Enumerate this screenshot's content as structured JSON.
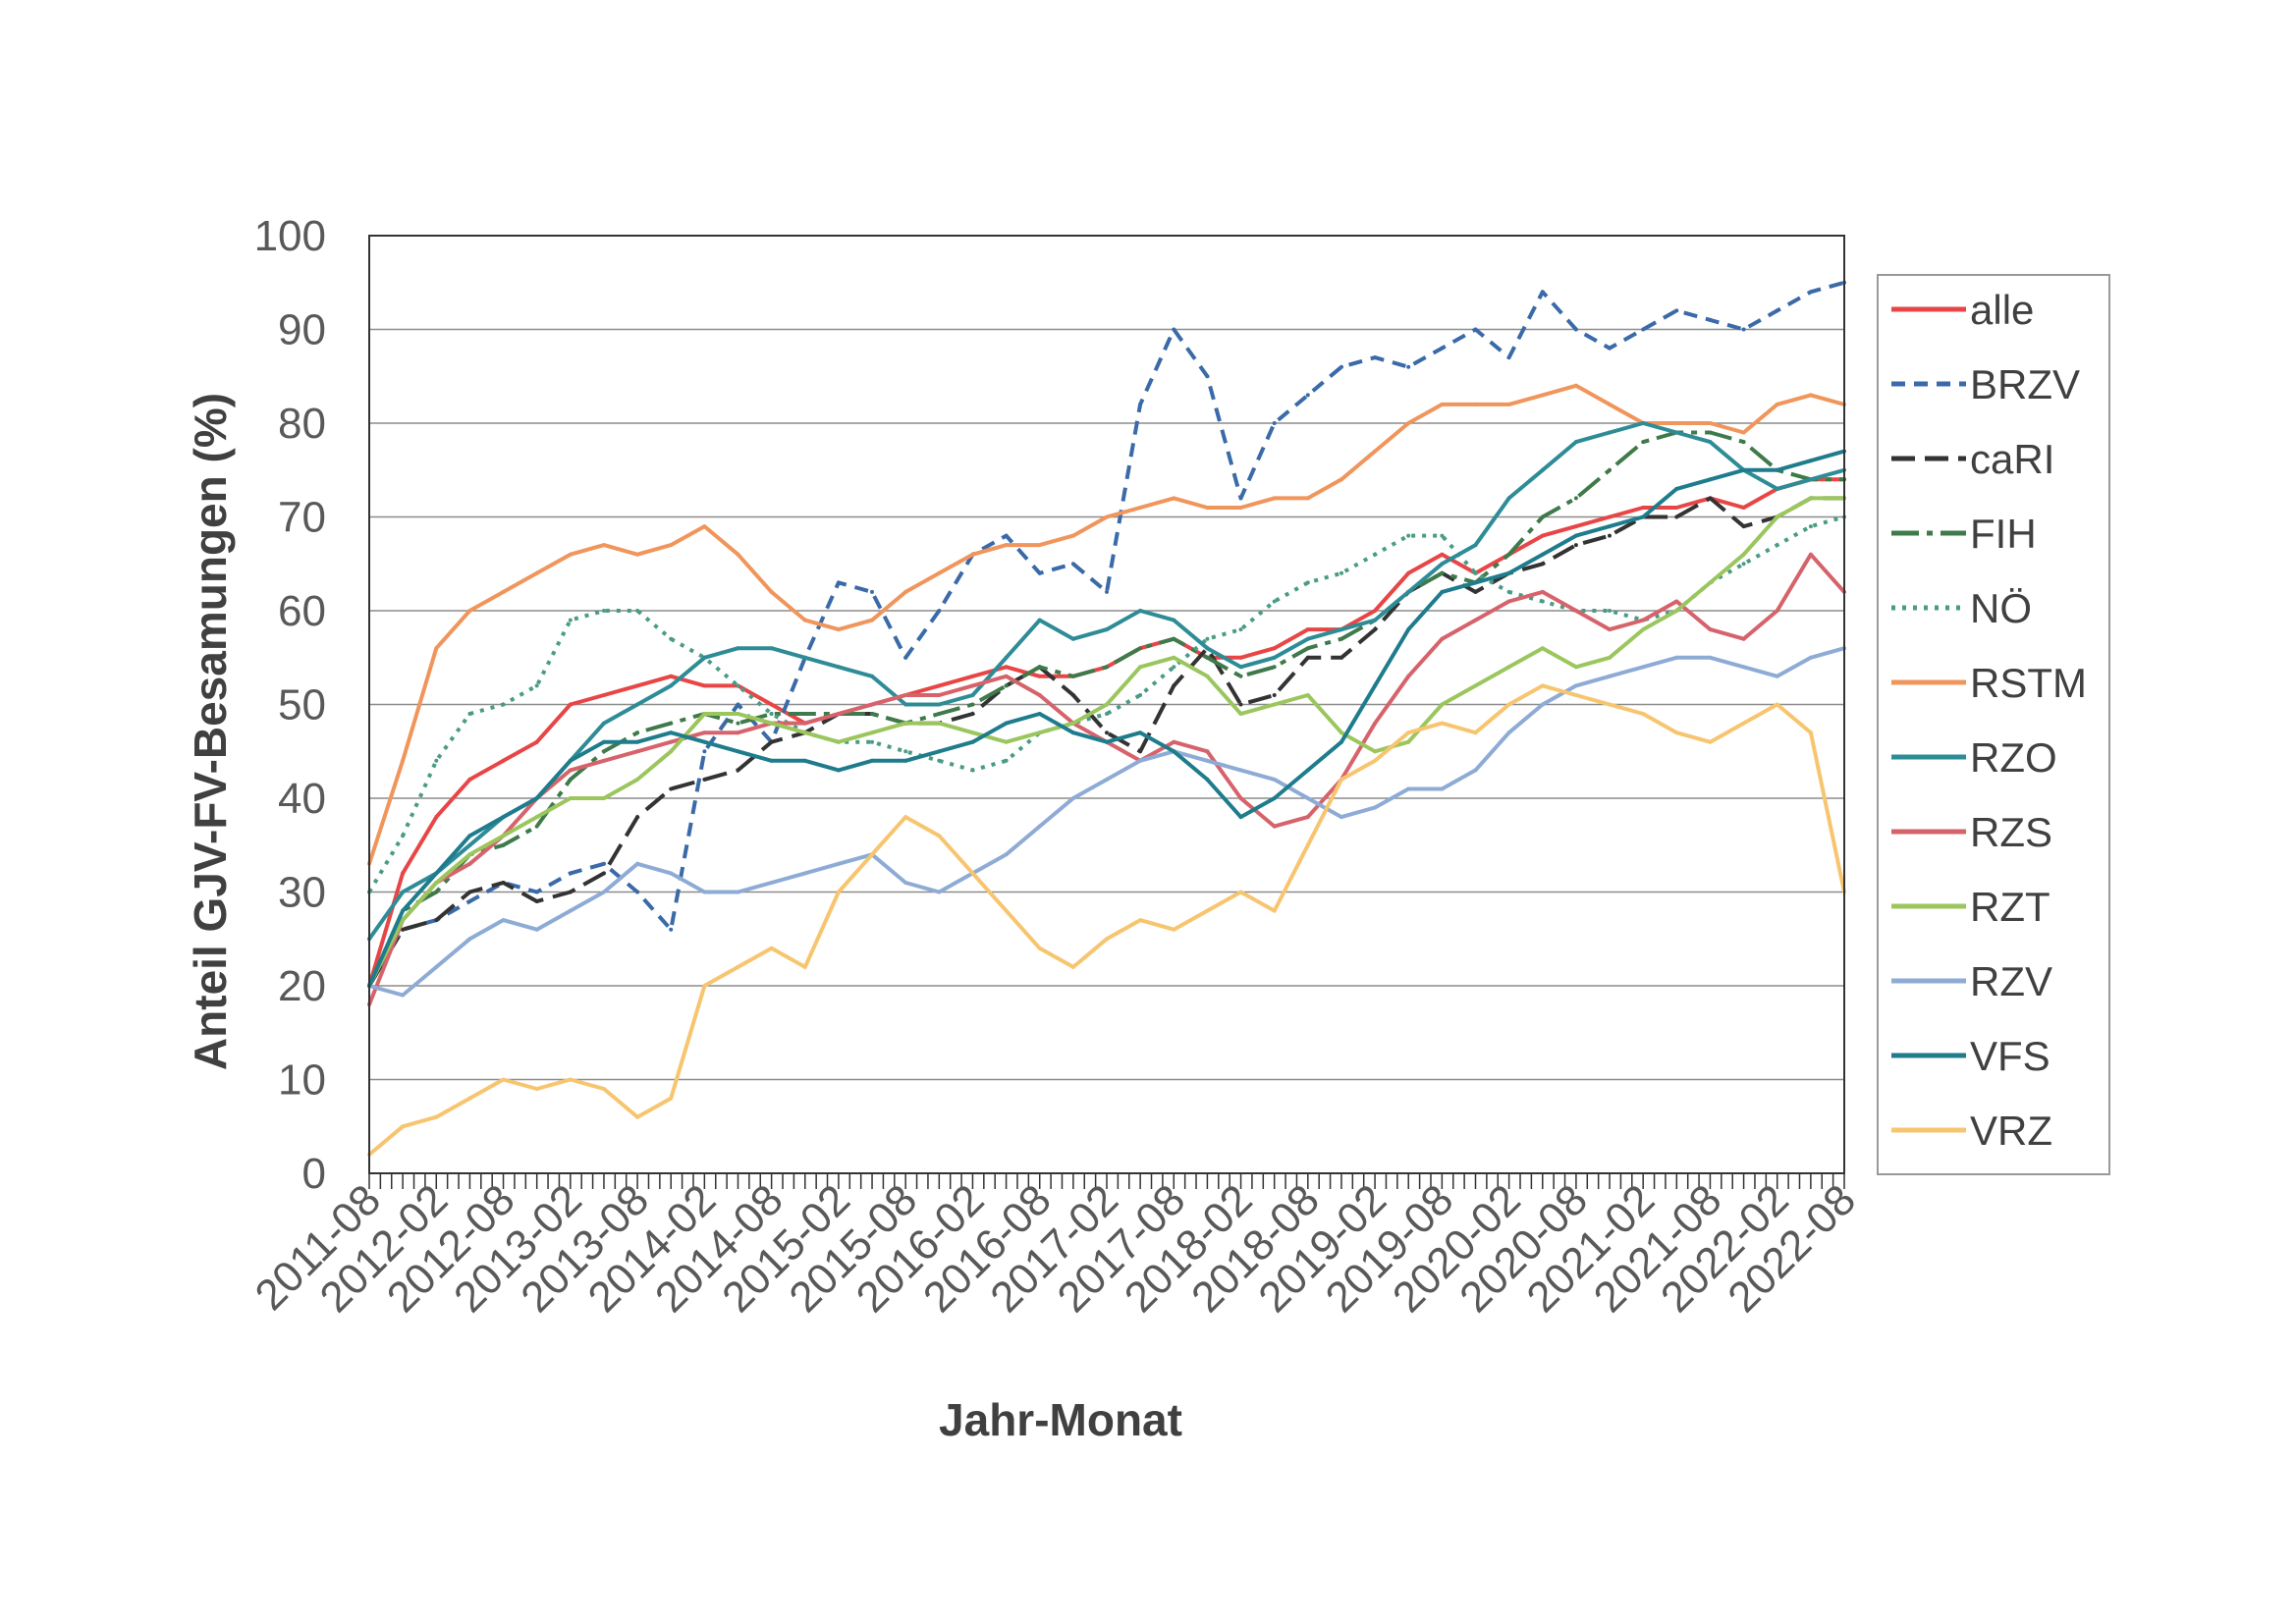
{
  "chart_data": {
    "type": "line",
    "title": "",
    "xlabel": "Jahr-Monat",
    "ylabel": "Anteil GJV-FV-Besamungen (%)",
    "ylim": [
      0,
      100
    ],
    "yticks": [
      0,
      10,
      20,
      30,
      40,
      50,
      60,
      70,
      80,
      90,
      100
    ],
    "grid": "horizontal",
    "legend_position": "right",
    "x": [
      "2011-08",
      "2011-11",
      "2012-02",
      "2012-05",
      "2012-08",
      "2012-11",
      "2013-02",
      "2013-05",
      "2013-08",
      "2013-11",
      "2014-02",
      "2014-05",
      "2014-08",
      "2014-11",
      "2015-02",
      "2015-05",
      "2015-08",
      "2015-11",
      "2016-02",
      "2016-05",
      "2016-08",
      "2016-11",
      "2017-02",
      "2017-05",
      "2017-08",
      "2017-11",
      "2018-02",
      "2018-05",
      "2018-08",
      "2018-11",
      "2019-02",
      "2019-05",
      "2019-08",
      "2019-11",
      "2020-02",
      "2020-05",
      "2020-08",
      "2020-11",
      "2021-02",
      "2021-05",
      "2021-08",
      "2021-11",
      "2022-02",
      "2022-05",
      "2022-08"
    ],
    "xtick_labels": [
      "2011-08",
      "2012-02",
      "2012-08",
      "2013-02",
      "2013-08",
      "2014-02",
      "2014-08",
      "2015-02",
      "2015-08",
      "2016-02",
      "2016-08",
      "2017-02",
      "2017-08",
      "2018-02",
      "2018-08",
      "2019-02",
      "2019-08",
      "2020-02",
      "2020-08",
      "2021-02",
      "2021-08",
      "2022-02",
      "2022-08"
    ],
    "series": [
      {
        "name": "alle",
        "color": "#e84646",
        "dash": "solid",
        "values": [
          20,
          32,
          38,
          42,
          44,
          46,
          50,
          51,
          52,
          53,
          52,
          52,
          50,
          48,
          49,
          50,
          51,
          52,
          53,
          54,
          53,
          53,
          54,
          56,
          57,
          55,
          55,
          56,
          58,
          58,
          60,
          64,
          66,
          64,
          66,
          68,
          69,
          70,
          71,
          71,
          72,
          71,
          73,
          74,
          74
        ]
      },
      {
        "name": "BRZV",
        "color": "#3a6aa8",
        "dash": "14,9",
        "values": [
          20,
          26,
          27,
          29,
          31,
          30,
          32,
          33,
          30,
          26,
          45,
          50,
          46,
          55,
          63,
          62,
          55,
          60,
          66,
          68,
          64,
          65,
          62,
          82,
          90,
          85,
          72,
          80,
          83,
          86,
          87,
          86,
          88,
          90,
          87,
          94,
          90,
          88,
          90,
          92,
          91,
          90,
          92,
          94,
          95
        ]
      },
      {
        "name": "caRI",
        "color": "#333333",
        "dash": "24,10",
        "values": [
          20,
          26,
          27,
          30,
          31,
          29,
          30,
          32,
          38,
          41,
          42,
          43,
          46,
          47,
          49,
          49,
          48,
          48,
          49,
          52,
          54,
          51,
          47,
          45,
          52,
          56,
          50,
          51,
          55,
          55,
          58,
          62,
          64,
          62,
          64,
          65,
          67,
          68,
          70,
          70,
          72,
          69,
          70,
          72,
          72
        ]
      },
      {
        "name": "FIH",
        "color": "#3e7a4a",
        "dash": "28,8,6,8",
        "values": [
          20,
          28,
          30,
          34,
          35,
          37,
          42,
          45,
          47,
          48,
          49,
          48,
          49,
          49,
          49,
          49,
          48,
          49,
          50,
          52,
          54,
          53,
          54,
          56,
          57,
          55,
          53,
          54,
          56,
          57,
          59,
          62,
          64,
          63,
          66,
          70,
          72,
          75,
          78,
          79,
          79,
          78,
          75,
          74,
          74
        ]
      },
      {
        "name": "NÖ",
        "color": "#4a9b86",
        "dash": "4,7",
        "values": [
          30,
          36,
          44,
          49,
          50,
          52,
          59,
          60,
          60,
          57,
          55,
          52,
          49,
          47,
          46,
          46,
          45,
          44,
          43,
          44,
          47,
          48,
          49,
          51,
          54,
          57,
          58,
          61,
          63,
          64,
          66,
          68,
          68,
          64,
          62,
          61,
          60,
          60,
          59,
          60,
          63,
          65,
          67,
          69,
          70
        ]
      },
      {
        "name": "RSTM",
        "color": "#f0955b",
        "dash": "solid",
        "values": [
          33,
          44,
          56,
          60,
          62,
          64,
          66,
          67,
          66,
          67,
          69,
          66,
          62,
          59,
          58,
          59,
          62,
          64,
          66,
          67,
          67,
          68,
          70,
          71,
          72,
          71,
          71,
          72,
          72,
          74,
          77,
          80,
          82,
          82,
          82,
          83,
          84,
          82,
          80,
          80,
          80,
          79,
          82,
          83,
          82
        ]
      },
      {
        "name": "RZO",
        "color": "#2d8c96",
        "dash": "solid",
        "values": [
          25,
          30,
          32,
          35,
          38,
          40,
          44,
          48,
          50,
          52,
          55,
          56,
          56,
          55,
          54,
          53,
          50,
          50,
          51,
          55,
          59,
          57,
          58,
          60,
          59,
          56,
          54,
          55,
          57,
          58,
          59,
          62,
          65,
          67,
          72,
          75,
          78,
          79,
          80,
          79,
          78,
          75,
          73,
          74,
          75
        ]
      },
      {
        "name": "RZS",
        "color": "#d6636b",
        "dash": "solid",
        "values": [
          18,
          27,
          31,
          33,
          36,
          40,
          43,
          44,
          45,
          46,
          47,
          47,
          48,
          48,
          49,
          50,
          51,
          51,
          52,
          53,
          51,
          48,
          46,
          44,
          46,
          45,
          40,
          37,
          38,
          42,
          48,
          53,
          57,
          59,
          61,
          62,
          60,
          58,
          59,
          61,
          58,
          57,
          60,
          66,
          62
        ]
      },
      {
        "name": "RZT",
        "color": "#9bc65d",
        "dash": "solid",
        "values": [
          20,
          27,
          31,
          34,
          36,
          38,
          40,
          40,
          42,
          45,
          49,
          49,
          48,
          47,
          46,
          47,
          48,
          48,
          47,
          46,
          47,
          48,
          50,
          54,
          55,
          53,
          49,
          50,
          51,
          47,
          45,
          46,
          50,
          52,
          54,
          56,
          54,
          55,
          58,
          60,
          63,
          66,
          70,
          72,
          72
        ]
      },
      {
        "name": "RZV",
        "color": "#8eabd6",
        "dash": "solid",
        "values": [
          20,
          19,
          22,
          25,
          27,
          26,
          28,
          30,
          33,
          32,
          30,
          30,
          31,
          32,
          33,
          34,
          31,
          30,
          32,
          34,
          37,
          40,
          42,
          44,
          45,
          44,
          43,
          42,
          40,
          38,
          39,
          41,
          41,
          43,
          47,
          50,
          52,
          53,
          54,
          55,
          55,
          54,
          53,
          55,
          56
        ]
      },
      {
        "name": "VFS",
        "color": "#1e7c8c",
        "dash": "solid",
        "values": [
          20,
          28,
          32,
          36,
          38,
          40,
          44,
          46,
          46,
          47,
          46,
          45,
          44,
          44,
          43,
          44,
          44,
          45,
          46,
          48,
          49,
          47,
          46,
          47,
          45,
          42,
          38,
          40,
          43,
          46,
          52,
          58,
          62,
          63,
          64,
          66,
          68,
          69,
          70,
          73,
          74,
          75,
          75,
          76,
          77
        ]
      },
      {
        "name": "VRZ",
        "color": "#f7c56f",
        "dash": "solid",
        "values": [
          2,
          5,
          6,
          8,
          10,
          9,
          10,
          9,
          6,
          8,
          20,
          22,
          24,
          22,
          30,
          34,
          38,
          36,
          32,
          28,
          24,
          22,
          25,
          27,
          26,
          28,
          30,
          28,
          35,
          42,
          44,
          47,
          48,
          47,
          50,
          52,
          51,
          50,
          49,
          47,
          46,
          48,
          50,
          47,
          30
        ]
      }
    ]
  }
}
